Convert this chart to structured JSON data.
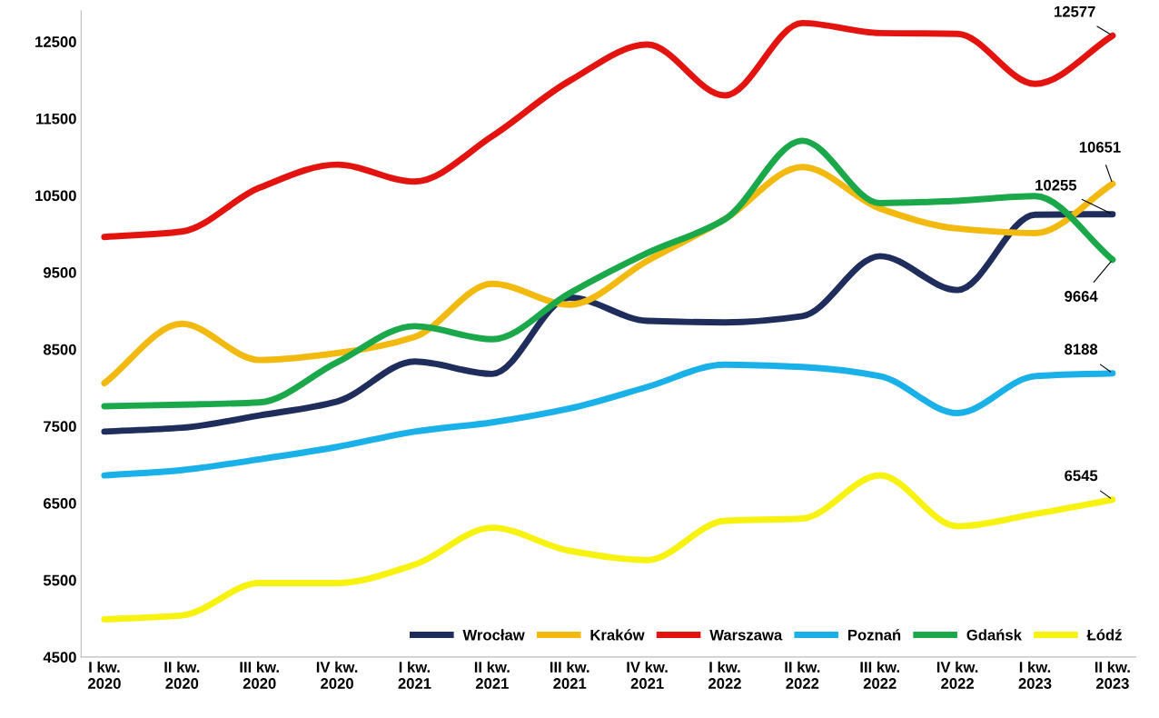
{
  "chart_data": {
    "type": "line",
    "categories": [
      "I kw.\n2020",
      "II kw.\n2020",
      "III kw.\n2020",
      "IV kw.\n2020",
      "I kw.\n2021",
      "II kw.\n2021",
      "III kw.\n2021",
      "IV kw.\n2021",
      "I kw.\n2022",
      "II kw.\n2022",
      "III kw.\n2022",
      "IV kw.\n2022",
      "I kw.\n2023",
      "II kw.\n2023"
    ],
    "series": [
      {
        "name": "Wrocław",
        "color": "#1f2d5c",
        "values": [
          7430,
          7480,
          7640,
          7820,
          8340,
          8180,
          9170,
          8870,
          8850,
          8930,
          9710,
          9270,
          10250,
          10255
        ]
      },
      {
        "name": "Kraków",
        "color": "#f2b90f",
        "values": [
          8060,
          8830,
          8360,
          8450,
          8660,
          9350,
          9080,
          9650,
          10190,
          10870,
          10330,
          10070,
          10010,
          10651
        ]
      },
      {
        "name": "Warszawa",
        "color": "#e3140f",
        "values": [
          9960,
          10030,
          10600,
          10900,
          10680,
          11270,
          11990,
          12460,
          11800,
          12740,
          12610,
          12600,
          11950,
          12577
        ]
      },
      {
        "name": "Poznań",
        "color": "#1ab0e8",
        "values": [
          6860,
          6930,
          7070,
          7230,
          7430,
          7550,
          7730,
          8010,
          8300,
          8270,
          8150,
          7670,
          8150,
          8188
        ]
      },
      {
        "name": "Gdańsk",
        "color": "#1aa84b",
        "values": [
          7760,
          7780,
          7810,
          8330,
          8800,
          8630,
          9230,
          9750,
          10190,
          11210,
          10400,
          10430,
          10490,
          9664
        ]
      },
      {
        "name": "Łódź",
        "color": "#f7f20f",
        "values": [
          4990,
          5040,
          5460,
          5460,
          5700,
          6180,
          5880,
          5760,
          6270,
          6300,
          6860,
          6200,
          6360,
          6545
        ]
      }
    ],
    "ylim": [
      4500,
      12900
    ],
    "yticks": [
      4500,
      5500,
      6500,
      7500,
      8500,
      9500,
      10500,
      11500,
      12500
    ],
    "annotations": [
      {
        "text": "12577",
        "x": "II kw.\n2023",
        "y": 12577
      },
      {
        "text": "10651",
        "x": "II kw.\n2023",
        "y": 10651
      },
      {
        "text": "10255",
        "x": "II kw.\n2023",
        "y": 10255
      },
      {
        "text": "9664",
        "x": "II kw.\n2023",
        "y": 9664
      },
      {
        "text": "8188",
        "x": "II kw.\n2023",
        "y": 8188
      },
      {
        "text": "6545",
        "x": "II kw.\n2023",
        "y": 6545
      }
    ],
    "legend": "bottom right",
    "grid": false,
    "marker": "none",
    "line_style": "solid"
  }
}
